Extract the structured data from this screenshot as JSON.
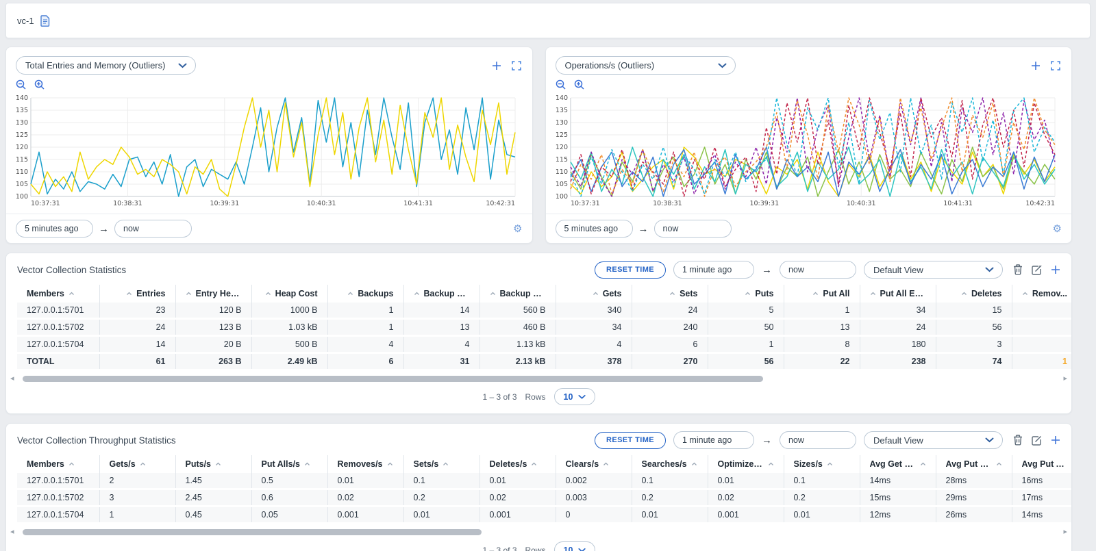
{
  "colors": {
    "accent": "#2463c6",
    "highlight": "#f5a623",
    "panel_border": "#bcc9d6"
  },
  "icons": {
    "document": "page-outline",
    "zoom_out": "magnifier-minus",
    "zoom_in": "magnifier-plus",
    "add": "plus",
    "expand": "corner-brackets",
    "settings": "⚙",
    "arrow_right": "→",
    "delete": "trash-outline",
    "edit": "pencil-square",
    "chevron": "chevron-down",
    "sort": "chevron-up",
    "scroll_left": "◂",
    "scroll_right": "▸"
  },
  "topbar": {
    "title": "vc-1"
  },
  "chart_panels": [
    {
      "metric_selector": "Total Entries and Memory (Outliers)",
      "time_from": "5 minutes ago",
      "time_to": "now"
    },
    {
      "metric_selector": "Operations/s (Outliers)",
      "time_from": "5 minutes ago",
      "time_to": "now"
    }
  ],
  "chart_data": [
    {
      "type": "line",
      "title": "Total Entries and Memory (Outliers)",
      "xlabel": "",
      "ylabel": "",
      "ylim": [
        100,
        140
      ],
      "yticks": [
        100,
        105,
        110,
        115,
        120,
        125,
        130,
        135,
        140
      ],
      "xticklabels": [
        "10:37:31",
        "10:38:31",
        "10:39:31",
        "10:40:31",
        "10:41:31",
        "10:42:31"
      ],
      "grid": true,
      "legend": "none",
      "series": [
        {
          "name": "blue",
          "color": "#1a9fcb",
          "dash": "none",
          "values": [
            105,
            118,
            101,
            107,
            103,
            110,
            102,
            106,
            105,
            103,
            109,
            104,
            115,
            116,
            108,
            114,
            105,
            117,
            100,
            112,
            115,
            104,
            111,
            109,
            107,
            114,
            105,
            120,
            136,
            110,
            128,
            140,
            118,
            132,
            105,
            139,
            122,
            140,
            112,
            130,
            108,
            135,
            117,
            140,
            124,
            111,
            138,
            104,
            130,
            140,
            115,
            127,
            109,
            136,
            119,
            140,
            107,
            131,
            117,
            116
          ]
        },
        {
          "name": "yellow",
          "color": "#eed600",
          "dash": "none",
          "values": [
            105,
            101,
            110,
            104,
            108,
            102,
            118,
            107,
            112,
            115,
            113,
            120,
            116,
            109,
            111,
            108,
            115,
            113,
            110,
            101,
            112,
            109,
            115,
            103,
            100,
            113,
            128,
            140,
            120,
            135,
            110,
            138,
            116,
            130,
            104,
            125,
            140,
            117,
            134,
            107,
            128,
            140,
            114,
            131,
            109,
            137,
            119,
            105,
            134,
            124,
            140,
            111,
            129,
            116,
            106,
            135,
            121,
            138,
            109,
            126
          ]
        }
      ]
    },
    {
      "type": "line",
      "title": "Operations/s (Outliers)",
      "xlabel": "",
      "ylabel": "",
      "ylim": [
        100,
        140
      ],
      "yticks": [
        100,
        105,
        110,
        115,
        120,
        125,
        130,
        135,
        140
      ],
      "xticklabels": [
        "10:37:31",
        "10:38:31",
        "10:39:31",
        "10:40:31",
        "10:41:31",
        "10:42:31"
      ],
      "grid": true,
      "legend": "none",
      "series": [
        {
          "name": "yellow-solid",
          "color": "#eed600",
          "dash": "none",
          "values": [
            105,
            101,
            110,
            104,
            108,
            118,
            102,
            107,
            112,
            115,
            103,
            120,
            116,
            109,
            111,
            108,
            115,
            113,
            110,
            101,
            112,
            109,
            115,
            103,
            118,
            106,
            100,
            113,
            108,
            117,
            104,
            111,
            119,
            107,
            114,
            102,
            116,
            110,
            105,
            118,
            108,
            113,
            101,
            117,
            109,
            115,
            106,
            112
          ]
        },
        {
          "name": "green-solid",
          "color": "#8bc34a",
          "dash": "none",
          "values": [
            110,
            103,
            117,
            108,
            100,
            114,
            106,
            119,
            102,
            111,
            116,
            104,
            109,
            120,
            105,
            113,
            101,
            115,
            107,
            118,
            103,
            112,
            108,
            116,
            100,
            110,
            119,
            105,
            114,
            102,
            117,
            107,
            111,
            104,
            118,
            109,
            101,
            115,
            106,
            120,
            108,
            112,
            103,
            116,
            110,
            105,
            113,
            107
          ]
        },
        {
          "name": "teal-solid",
          "color": "#2dc5c0",
          "dash": "none",
          "values": [
            114,
            107,
            118,
            102,
            111,
            105,
            120,
            108,
            100,
            115,
            109,
            117,
            103,
            112,
            106,
            119,
            101,
            113,
            110,
            116,
            104,
            108,
            118,
            102,
            114,
            107,
            111,
            120,
            105,
            109,
            115,
            100,
            117,
            106,
            112,
            103,
            119,
            108,
            114,
            101,
            116,
            110,
            104,
            118,
            107,
            113,
            105,
            111
          ]
        },
        {
          "name": "blue-solid",
          "color": "#3a7bd5",
          "dash": "none",
          "values": [
            108,
            115,
            102,
            112,
            118,
            104,
            110,
            106,
            116,
            100,
            113,
            119,
            105,
            109,
            114,
            101,
            117,
            107,
            111,
            120,
            103,
            115,
            108,
            112,
            106,
            118,
            100,
            114,
            109,
            116,
            102,
            111,
            119,
            105,
            113,
            107,
            117,
            101,
            110,
            115,
            104,
            112,
            108,
            118,
            103,
            116,
            106,
            117
          ]
        },
        {
          "name": "purple-dashed",
          "color": "#8e24aa",
          "dash": "4 3",
          "values": [
            112,
            104,
            118,
            107,
            100,
            115,
            109,
            119,
            102,
            113,
            106,
            116,
            101,
            110,
            117,
            103,
            114,
            108,
            120,
            105,
            132,
            118,
            140,
            110,
            128,
            137,
            104,
            124,
            140,
            115,
            133,
            108,
            138,
            121,
            140,
            112,
            130,
            106,
            136,
            126,
            140,
            117,
            134,
            109,
            139,
            123,
            131,
            114
          ]
        },
        {
          "name": "crimson-dashed",
          "color": "#c2264b",
          "dash": "4 3",
          "values": [
            106,
            117,
            101,
            112,
            108,
            119,
            103,
            114,
            110,
            105,
            118,
            100,
            115,
            107,
            120,
            104,
            111,
            116,
            102,
            128,
            109,
            138,
            122,
            140,
            113,
            131,
            105,
            137,
            119,
            140,
            126,
            111,
            134,
            108,
            140,
            124,
            132,
            116,
            139,
            107,
            129,
            140,
            120,
            135,
            112,
            138,
            125,
            117
          ]
        },
        {
          "name": "orange-dashed",
          "color": "#f08c2c",
          "dash": "4 3",
          "values": [
            103,
            113,
            107,
            117,
            101,
            111,
            105,
            119,
            109,
            102,
            115,
            108,
            118,
            100,
            112,
            116,
            104,
            110,
            114,
            120,
            134,
            111,
            139,
            125,
            107,
            137,
            118,
            140,
            129,
            113,
            132,
            106,
            140,
            122,
            136,
            115,
            128,
            140,
            110,
            133,
            124,
            138,
            108,
            130,
            119,
            140,
            127,
            121
          ]
        },
        {
          "name": "cyan-dashed",
          "color": "#19b6d8",
          "dash": "4 3",
          "values": [
            109,
            100,
            116,
            105,
            119,
            110,
            102,
            113,
            107,
            120,
            104,
            117,
            111,
            101,
            115,
            108,
            118,
            106,
            112,
            115,
            140,
            121,
            108,
            136,
            127,
            140,
            112,
            130,
            105,
            139,
            123,
            134,
            110,
            140,
            117,
            129,
            107,
            138,
            126,
            140,
            114,
            131,
            109,
            135,
            140,
            118,
            128,
            122
          ]
        }
      ]
    }
  ],
  "tables": [
    {
      "title": "Vector Collection Statistics",
      "controls": {
        "reset_button": "RESET TIME",
        "time_from": "1 minute ago",
        "time_to": "now",
        "view_selector": "Default View"
      },
      "columns": [
        {
          "label": "Members",
          "align": "left"
        },
        {
          "label": "Entries",
          "align": "right"
        },
        {
          "label": "Entry Heap ...",
          "align": "right"
        },
        {
          "label": "Heap Cost",
          "align": "right"
        },
        {
          "label": "Backups",
          "align": "right"
        },
        {
          "label": "Backup Entri...",
          "align": "right"
        },
        {
          "label": "Backup Entr...",
          "align": "right"
        },
        {
          "label": "Gets",
          "align": "right"
        },
        {
          "label": "Sets",
          "align": "right"
        },
        {
          "label": "Puts",
          "align": "right"
        },
        {
          "label": "Put All",
          "align": "right"
        },
        {
          "label": "Put All Entries",
          "align": "right"
        },
        {
          "label": "Deletes",
          "align": "right"
        },
        {
          "label": "Remov...",
          "align": "right"
        }
      ],
      "rows": [
        [
          "127.0.0.1:5701",
          "23",
          "120 B",
          "1000 B",
          "1",
          "14",
          "560 B",
          "340",
          "24",
          "5",
          "1",
          "34",
          "15",
          ""
        ],
        [
          "127.0.0.1:5702",
          "24",
          "123 B",
          "1.03 kB",
          "1",
          "13",
          "460 B",
          "34",
          "240",
          "50",
          "13",
          "24",
          "56",
          ""
        ],
        [
          "127.0.0.1:5704",
          "14",
          "20 B",
          "500 B",
          "4",
          "4",
          "1.13 kB",
          "4",
          "6",
          "1",
          "8",
          "180",
          "3",
          ""
        ]
      ],
      "total_row": [
        "TOTAL",
        "61",
        "263 B",
        "2.49 kB",
        "6",
        "31",
        "2.13 kB",
        "378",
        "270",
        "56",
        "22",
        "238",
        "74",
        "1"
      ],
      "footer": {
        "range": "1 – 3 of 3",
        "rows_label": "Rows",
        "page_size": "10"
      }
    },
    {
      "title": "Vector Collection Throughput Statistics",
      "controls": {
        "reset_button": "RESET TIME",
        "time_from": "1 minute ago",
        "time_to": "now",
        "view_selector": "Default View"
      },
      "columns": [
        {
          "label": "Members",
          "align": "left"
        },
        {
          "label": "Gets/s",
          "align": "left"
        },
        {
          "label": "Puts/s",
          "align": "left"
        },
        {
          "label": "Put Alls/s",
          "align": "left"
        },
        {
          "label": "Removes/s",
          "align": "left"
        },
        {
          "label": "Sets/s",
          "align": "left"
        },
        {
          "label": "Deletes/s",
          "align": "left"
        },
        {
          "label": "Clears/s",
          "align": "left"
        },
        {
          "label": "Searches/s",
          "align": "left"
        },
        {
          "label": "Optimizes/s",
          "align": "left"
        },
        {
          "label": "Sizes/s",
          "align": "left"
        },
        {
          "label": "Avg Get Late...",
          "align": "left"
        },
        {
          "label": "Avg Put Late...",
          "align": "left"
        },
        {
          "label": "Avg Put All L...",
          "align": "left"
        }
      ],
      "rows": [
        [
          "127.0.0.1:5701",
          "2",
          "1.45",
          "0.5",
          "0.01",
          "0.1",
          "0.01",
          "0.002",
          "0.1",
          "0.01",
          "0.1",
          "14ms",
          "28ms",
          "16ms"
        ],
        [
          "127.0.0.1:5702",
          "3",
          "2.45",
          "0.6",
          "0.02",
          "0.2",
          "0.02",
          "0.003",
          "0.2",
          "0.02",
          "0.2",
          "15ms",
          "29ms",
          "17ms"
        ],
        [
          "127.0.0.1:5704",
          "1",
          "0.45",
          "0.05",
          "0.001",
          "0.01",
          "0.001",
          "0",
          "0.01",
          "0.001",
          "0.01",
          "12ms",
          "26ms",
          "14ms"
        ]
      ],
      "footer": {
        "range": "1 – 3 of 3",
        "rows_label": "Rows",
        "page_size": "10"
      }
    }
  ]
}
